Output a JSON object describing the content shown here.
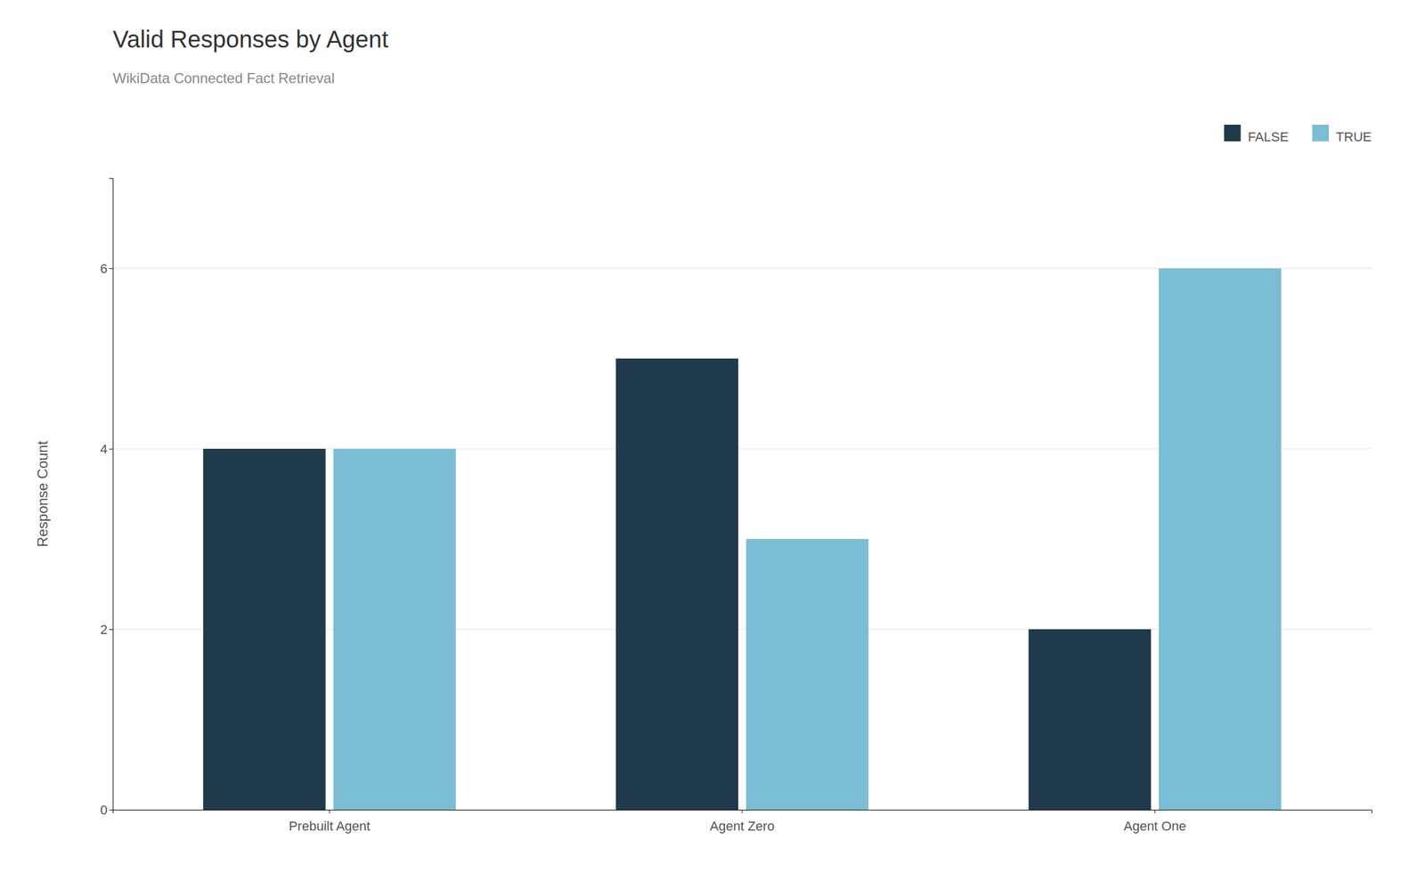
{
  "chart_data": {
    "type": "bar",
    "title": "Valid Responses by Agent",
    "subtitle": "WikiData Connected Fact Retrieval",
    "y_label": "Response Count",
    "categories": [
      "Prebuilt Agent",
      "Agent Zero",
      "Agent One"
    ],
    "series": [
      {
        "name": "FALSE",
        "color": "#1f3a4a",
        "values": [
          4,
          5,
          2
        ]
      },
      {
        "name": "TRUE",
        "color": "#7bbdd4",
        "values": [
          4,
          3,
          6
        ]
      }
    ],
    "ylim": [
      0,
      7
    ],
    "yticks": [
      0,
      2,
      4,
      6
    ],
    "grid": true,
    "legend": "upper right"
  }
}
